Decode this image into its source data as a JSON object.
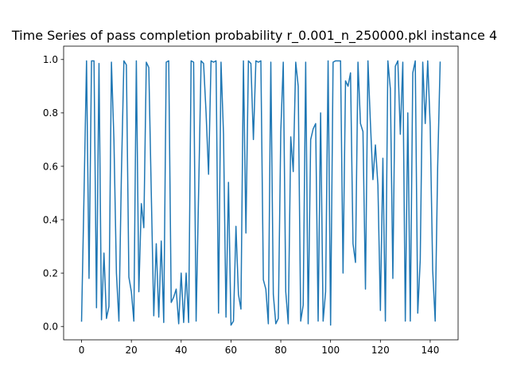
{
  "chart_data": {
    "type": "line",
    "title": "Time Series of pass completion probability r_0.001_n_250000.pkl instance 4",
    "xlabel": "",
    "ylabel": "",
    "xlim": [
      -7.2,
      151.2
    ],
    "ylim": [
      -0.05,
      1.05
    ],
    "xticks": [
      0,
      20,
      40,
      60,
      80,
      100,
      120,
      140
    ],
    "yticks": [
      0.0,
      0.2,
      0.4,
      0.6,
      0.8,
      1.0
    ],
    "grid": false,
    "line_color": "#1f77b4",
    "series": [
      {
        "x": [
          0,
          1,
          2,
          3,
          4,
          5,
          6,
          7,
          8,
          9,
          10,
          11,
          12,
          13,
          14,
          15,
          16,
          17,
          18,
          19,
          20,
          21,
          22,
          23,
          24,
          25,
          26,
          27,
          28,
          29,
          30,
          31,
          32,
          33,
          34,
          35,
          36,
          37,
          38,
          39,
          40,
          41,
          42,
          43,
          44,
          45,
          46,
          47,
          48,
          49,
          50,
          51,
          52,
          53,
          54,
          55,
          56,
          57,
          58,
          59,
          60,
          61,
          62,
          63,
          64,
          65,
          66,
          67,
          68,
          69,
          70,
          71,
          72,
          73,
          74,
          75,
          76,
          77,
          78,
          79,
          80,
          81,
          82,
          83,
          84,
          85,
          86,
          87,
          88,
          89,
          90,
          91,
          92,
          93,
          94,
          95,
          96,
          97,
          98,
          99,
          100,
          101,
          102,
          103,
          104,
          105,
          106,
          107,
          108,
          109,
          110,
          111,
          112,
          113,
          114,
          115,
          116,
          117,
          118,
          119,
          120,
          121,
          122,
          123,
          124,
          125,
          126,
          127,
          128,
          129,
          130,
          131,
          132,
          133,
          134,
          135,
          136,
          137,
          138,
          139,
          140,
          141,
          142,
          143,
          144
        ],
        "values": [
          0.02,
          0.5,
          0.995,
          0.18,
          0.995,
          0.995,
          0.07,
          0.985,
          0.025,
          0.275,
          0.03,
          0.075,
          0.99,
          0.7,
          0.2,
          0.02,
          0.57,
          0.995,
          0.98,
          0.185,
          0.13,
          0.02,
          0.995,
          0.13,
          0.46,
          0.37,
          0.99,
          0.97,
          0.5,
          0.04,
          0.31,
          0.035,
          0.32,
          0.015,
          0.99,
          0.995,
          0.09,
          0.11,
          0.14,
          0.01,
          0.2,
          0.015,
          0.2,
          0.015,
          0.995,
          0.99,
          0.02,
          0.5,
          0.995,
          0.985,
          0.8,
          0.57,
          0.995,
          0.99,
          0.995,
          0.05,
          0.99,
          0.72,
          0.035,
          0.54,
          0.005,
          0.02,
          0.375,
          0.12,
          0.065,
          0.995,
          0.35,
          0.995,
          0.985,
          0.7,
          0.995,
          0.99,
          0.995,
          0.175,
          0.14,
          0.01,
          0.99,
          0.12,
          0.01,
          0.03,
          0.73,
          0.99,
          0.13,
          0.01,
          0.71,
          0.58,
          0.99,
          0.9,
          0.02,
          0.08,
          0.99,
          0.01,
          0.7,
          0.74,
          0.76,
          0.02,
          0.8,
          0.02,
          0.13,
          0.995,
          0.005,
          0.99,
          0.995,
          0.995,
          0.995,
          0.2,
          0.92,
          0.9,
          0.95,
          0.31,
          0.24,
          0.99,
          0.76,
          0.73,
          0.14,
          0.995,
          0.76,
          0.55,
          0.68,
          0.53,
          0.06,
          0.63,
          0.02,
          0.995,
          0.89,
          0.18,
          0.975,
          0.995,
          0.72,
          0.99,
          0.02,
          0.8,
          0.02,
          0.95,
          0.995,
          0.05,
          0.25,
          0.99,
          0.76,
          0.995,
          0.75,
          0.21,
          0.02,
          0.6,
          0.99
        ]
      }
    ]
  }
}
